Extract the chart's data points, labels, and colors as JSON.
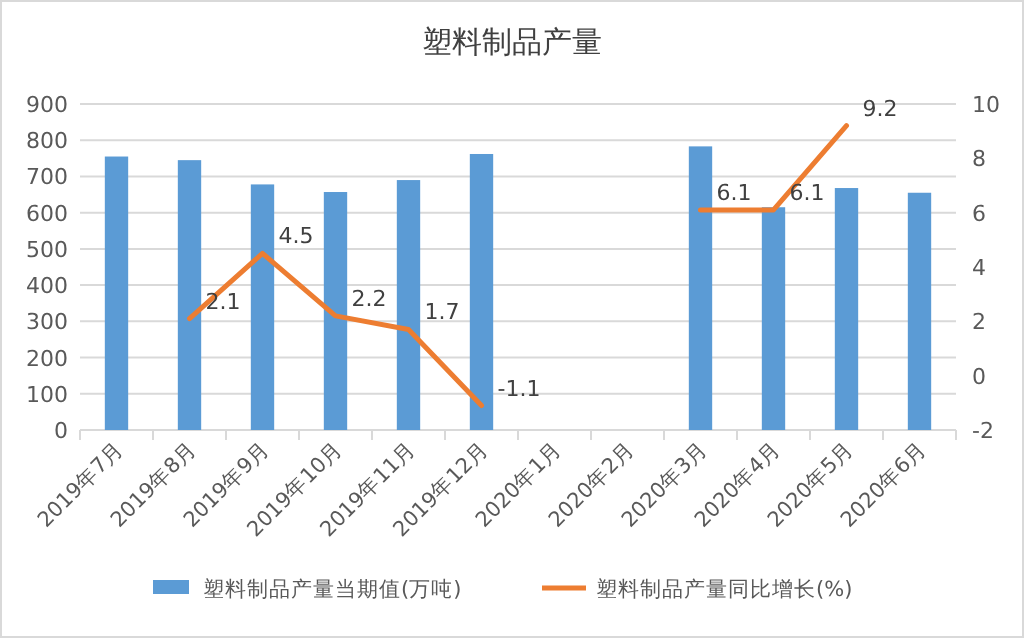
{
  "chart_data": {
    "type": "bar",
    "title": "塑料制品产量",
    "categories": [
      "2019年7月",
      "2019年8月",
      "2019年9月",
      "2019年10月",
      "2019年11月",
      "2019年12月",
      "2020年1月",
      "2020年2月",
      "2020年3月",
      "2020年4月",
      "2020年5月",
      "2020年6月"
    ],
    "series": [
      {
        "name": "塑料制品产量当期值(万吨)",
        "color": "#5b9bd5",
        "values": [
          755,
          745,
          678,
          657,
          690,
          762,
          null,
          null,
          783,
          615,
          668,
          655
        ]
      },
      {
        "name": "塑料制品产量同比增长(%)",
        "color": "#ed7d31",
        "type": "line",
        "axis": "y2",
        "values": [
          null,
          2.1,
          4.5,
          2.2,
          1.7,
          -1.1,
          null,
          null,
          6.1,
          6.1,
          9.2,
          null
        ],
        "value_labels": [
          null,
          "2.1",
          "4.5",
          "2.2",
          "1.7",
          "-1.1",
          null,
          null,
          "6.1",
          "6.1",
          "9.2",
          null
        ]
      }
    ],
    "ylim": [
      0,
      900
    ],
    "yticks": [
      0,
      100,
      200,
      300,
      400,
      500,
      600,
      700,
      800,
      900
    ],
    "y2lim": [
      -2,
      10
    ],
    "y2ticks": [
      -2,
      0,
      2,
      4,
      6,
      8,
      10
    ],
    "grid": "y",
    "legend": "bottom",
    "marker": "none"
  }
}
